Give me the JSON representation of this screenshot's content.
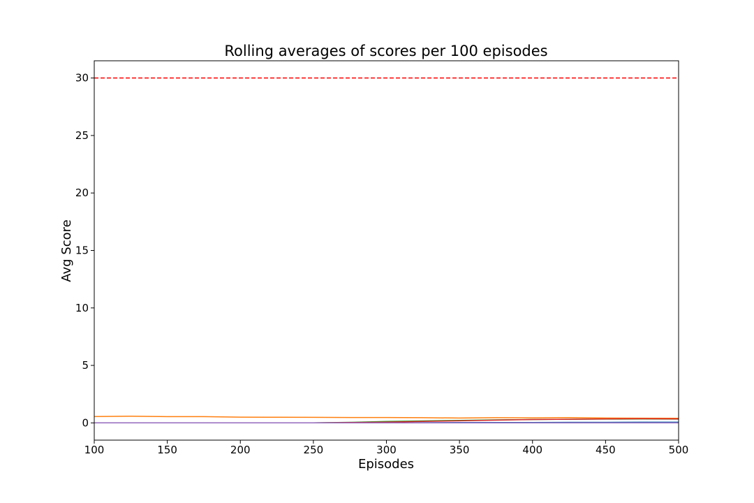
{
  "chart_data": {
    "type": "line",
    "title": "Rolling averages of scores per 100 episodes",
    "xlabel": "Episodes",
    "ylabel": "Avg Score",
    "xlim": [
      100,
      500
    ],
    "ylim": [
      -1.5,
      31.5
    ],
    "xticks": [
      100,
      150,
      200,
      250,
      300,
      350,
      400,
      450,
      500
    ],
    "yticks": [
      0,
      5,
      10,
      15,
      20,
      25,
      30
    ],
    "grid": false,
    "reference_line": {
      "y": 30,
      "color": "#ff0000",
      "style": "dashed"
    },
    "x": [
      100,
      125,
      150,
      175,
      200,
      225,
      250,
      275,
      300,
      325,
      350,
      375,
      400,
      425,
      450,
      475,
      500
    ],
    "series": [
      {
        "color": "#1f77b4",
        "values": [
          0.0,
          0.0,
          0.0,
          0.0,
          0.0,
          0.0,
          0.0,
          0.01,
          0.01,
          0.02,
          0.03,
          0.03,
          0.04,
          0.05,
          0.05,
          0.06,
          0.06
        ]
      },
      {
        "color": "#ff7f0e",
        "values": [
          0.55,
          0.58,
          0.54,
          0.54,
          0.5,
          0.49,
          0.48,
          0.47,
          0.47,
          0.45,
          0.42,
          0.45,
          0.44,
          0.46,
          0.42,
          0.41,
          0.4
        ]
      },
      {
        "color": "#2ca02c",
        "values": [
          0.0,
          0.0,
          0.0,
          0.0,
          0.0,
          0.0,
          0.0,
          0.05,
          0.12,
          0.17,
          0.22,
          0.26,
          0.29,
          0.32,
          0.33,
          0.34,
          0.33
        ]
      },
      {
        "color": "#d62728",
        "values": [
          0.0,
          0.0,
          0.0,
          0.0,
          0.0,
          0.0,
          0.01,
          0.03,
          0.07,
          0.12,
          0.18,
          0.24,
          0.29,
          0.32,
          0.35,
          0.36,
          0.35
        ]
      },
      {
        "color": "#9467bd",
        "values": [
          0.0,
          0.0,
          0.0,
          0.0,
          0.0,
          0.0,
          0.0,
          0.0,
          0.0,
          0.0,
          0.0,
          0.0,
          0.0,
          0.0,
          0.0,
          0.0,
          0.0
        ]
      }
    ]
  }
}
